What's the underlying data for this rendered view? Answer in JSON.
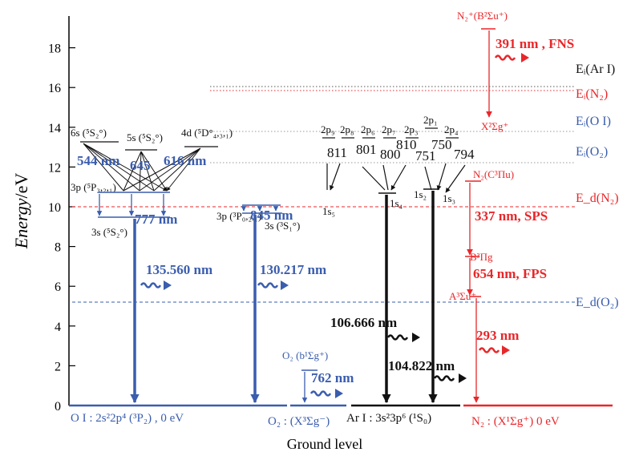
{
  "colors": {
    "oxygen": "#3a5dae",
    "argon": "#111111",
    "nitrogen": "#e8272a",
    "axis": "#000000"
  },
  "axis": {
    "ylabel_italic": "Energy",
    "ylabel_unit": "/eV",
    "xlabel": "Ground level",
    "ticks": [
      "0",
      "2",
      "4",
      "6",
      "8",
      "10",
      "12",
      "14",
      "16",
      "18"
    ]
  },
  "ground": {
    "oi": "O I   :  2s²2p⁴ (³P₂)  ,   0 eV",
    "o2": "O₂ : (X³Σg⁻)",
    "ar": "Ar I : 3s²3p⁶ (¹S₀)",
    "n2": "N₂ : (X¹Σg⁺)      0 eV"
  },
  "thresholds": {
    "ei_ar": "Eᵢ(Ar I)",
    "ei_n2": "Eᵢ(N₂)",
    "ei_oi": "Eᵢ(O I)",
    "ei_o2": "Eᵢ(O₂)",
    "ed_n2": "E_d(N₂)",
    "ed_o2": "E_d(O₂)"
  },
  "oxygen": {
    "state_6s": "6s (⁵S₂°)",
    "state_5s": "5s (⁵S₂°)",
    "state_4d": "4d (⁵D°₄,₃,₁)",
    "state_3p5": "3p (⁵P₃,₂,₁)",
    "state_3s5": "3s (⁵S₂°)",
    "state_3p3": "3p (³P₀,₂,₁)",
    "state_3s3": "3s (³S₁°)",
    "line_544": "544 nm",
    "line_645": "645",
    "line_616": "616 nm",
    "line_777": "777 nm",
    "line_845": "845 nm",
    "line_135": "135.560 nm",
    "line_130": "130.217 nm",
    "o2_state": "O₂ (b¹Σg⁺)",
    "line_762": "762 nm"
  },
  "argon": {
    "levels": [
      "2p₉",
      "2p₈",
      "2p₆",
      "2p₇",
      "2p₃",
      "2p₁",
      "2p₄"
    ],
    "lines": [
      "811",
      "801",
      "800",
      "810",
      "751",
      "750",
      "794"
    ],
    "s_levels": [
      "1s₅",
      "1s₄",
      "1s₂",
      "1s₃"
    ],
    "line_106": "106.666 nm",
    "line_104": "104.822 nm"
  },
  "nitrogen": {
    "state_b2": "N₂⁺(B²Σu⁺)",
    "line_391": "391 nm , FNS",
    "state_x2": "X²Σg⁺",
    "state_c3": "N₂(C³Πu)",
    "line_337": "337 nm, SPS",
    "state_b3": "B³Πg",
    "line_654": "654 nm, FPS",
    "state_a3": "A³Σu⁺",
    "line_293": "293 nm"
  }
}
